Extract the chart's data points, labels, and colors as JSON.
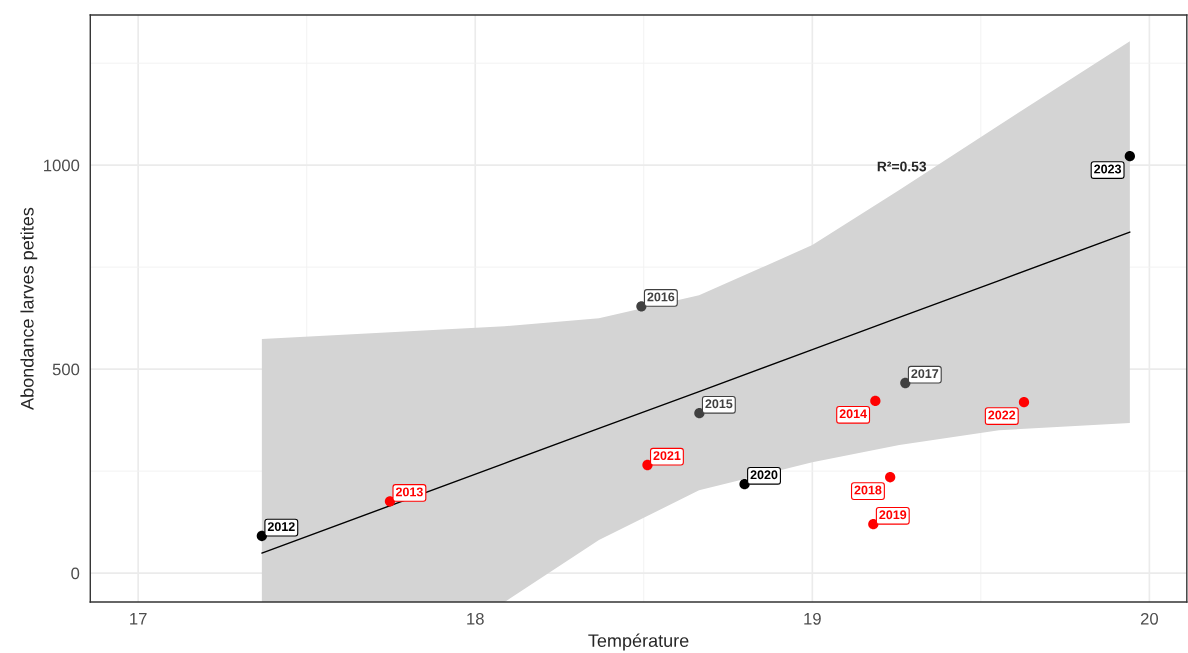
{
  "chart_data": {
    "type": "scatter",
    "xlabel": "Température",
    "ylabel": "Abondance larves petites",
    "xlim": [
      16.858,
      20.111
    ],
    "ylim": [
      -71,
      1368
    ],
    "xticks": [
      17,
      18,
      19,
      20
    ],
    "yticks": [
      0,
      500,
      1000
    ],
    "grid": true,
    "series": [
      {
        "x": [
          17.367,
          17.747,
          19.187,
          18.665,
          18.493,
          19.276,
          19.231,
          19.181,
          18.799,
          18.511,
          19.628,
          19.942
        ],
        "values": [
          91,
          176,
          422,
          392,
          654,
          466,
          235,
          120,
          218,
          265,
          419,
          1022
        ],
        "colors": [
          "#000000",
          "#ff0000",
          "#ff0000",
          "#404040",
          "#404040",
          "#404040",
          "#ff0000",
          "#ff0000",
          "#000000",
          "#ff0000",
          "#ff0000",
          "#000000"
        ]
      },
      {
        "type": "line",
        "color": "#000000",
        "x": [
          17.367,
          18.087,
          18.367,
          18.664,
          19.0,
          19.258,
          19.554,
          19.942
        ],
        "values": [
          49,
          269,
          355,
          445,
          548,
          627,
          717,
          836
        ],
        "lower": [
          -71,
          -71,
          81,
          203,
          272,
          314,
          350,
          368
        ],
        "upper": [
          574,
          605,
          625,
          681,
          804,
          939,
          1098,
          1304
        ]
      }
    ],
    "annotations": [
      "R²=0.53",
      {
        "text": "2012",
        "x": 17.367,
        "y": 91
      },
      {
        "text": "2013",
        "x": 17.747,
        "y": 176
      },
      {
        "text": "2014",
        "x": 19.187,
        "y": 422
      },
      {
        "text": "2015",
        "x": 18.665,
        "y": 392
      },
      {
        "text": "2016",
        "x": 18.493,
        "y": 654
      },
      {
        "text": "2017",
        "x": 19.276,
        "y": 466
      },
      {
        "text": "2018",
        "x": 19.231,
        "y": 235
      },
      {
        "text": "2019",
        "x": 19.181,
        "y": 120
      },
      {
        "text": "2020",
        "x": 18.799,
        "y": 218
      },
      {
        "text": "2021",
        "x": 18.511,
        "y": 265
      },
      {
        "text": "2022",
        "x": 19.628,
        "y": 419
      },
      {
        "text": "2023",
        "x": 19.942,
        "y": 1022
      }
    ]
  }
}
